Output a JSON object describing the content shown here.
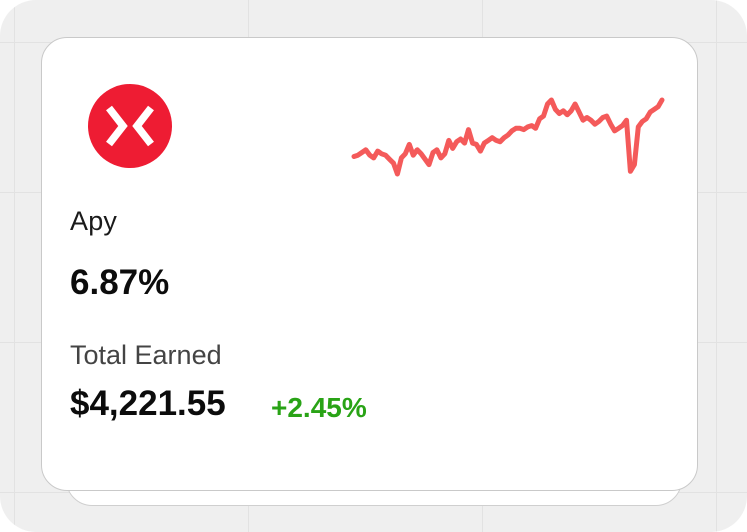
{
  "card": {
    "apy_label": "Apy",
    "apy_value": "6.87%",
    "earned_label": "Total Earned",
    "earned_value": "$4,221.55",
    "change": "+2.45%"
  },
  "logo": {
    "icon": "x-arrows-logo-icon",
    "color": "#ee1c33"
  },
  "sparkline": {
    "color": "#f45a5a",
    "values": [
      46,
      47,
      49,
      51,
      47,
      45,
      50,
      48,
      47,
      44,
      41,
      33,
      45,
      48,
      55,
      47,
      51,
      48,
      44,
      40,
      49,
      51,
      45,
      48,
      58,
      52,
      57,
      59,
      56,
      66,
      56,
      55,
      50,
      56,
      58,
      60,
      58,
      57,
      60,
      62,
      65,
      67,
      67,
      66,
      68,
      69,
      67,
      74,
      76,
      85,
      88,
      81,
      78,
      80,
      77,
      80,
      85,
      79,
      73,
      75,
      73,
      70,
      72,
      75,
      76,
      70,
      65,
      67,
      69,
      73,
      35,
      40,
      68,
      72,
      74,
      79,
      81,
      83,
      88
    ]
  },
  "colors": {
    "positive": "#29a316",
    "text_primary": "#0c0c0c",
    "text_secondary": "#444444"
  }
}
